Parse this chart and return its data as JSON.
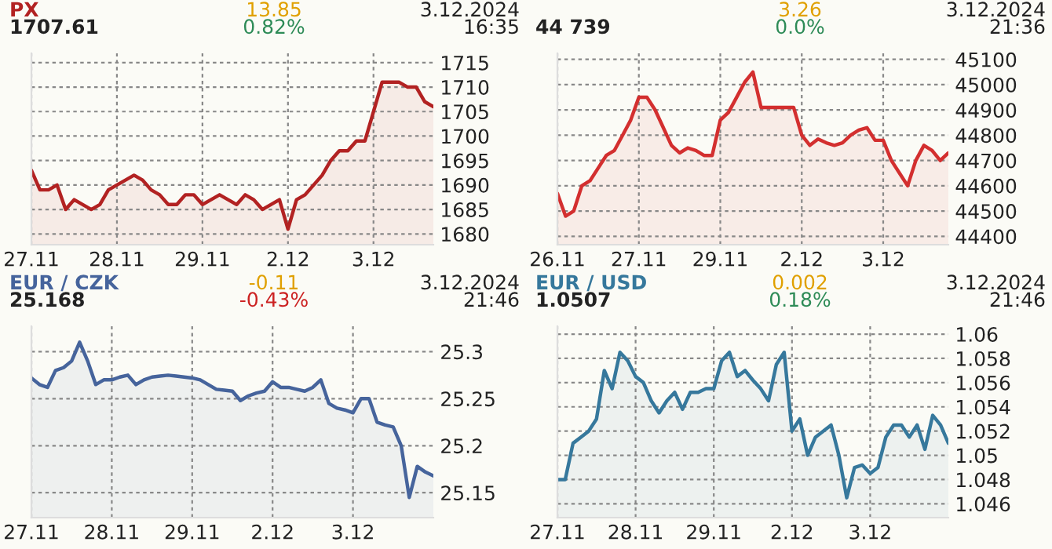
{
  "chart_data": [
    {
      "type": "area",
      "title": "PX",
      "subtitle": "1707.61",
      "annotations": [
        "13.85",
        "0.82%",
        "3.12.2024",
        "16:35"
      ],
      "grid": true,
      "categories": [
        "27.11",
        null,
        null,
        null,
        null,
        null,
        null,
        null,
        null,
        null,
        "28.11",
        null,
        null,
        null,
        null,
        null,
        null,
        null,
        null,
        null,
        "29.11",
        null,
        null,
        null,
        null,
        null,
        null,
        null,
        null,
        null,
        "2.12",
        null,
        null,
        null,
        null,
        null,
        null,
        null,
        null,
        null,
        "3.12",
        null,
        null,
        null,
        null,
        null,
        null,
        null
      ],
      "ylim": [
        1677.8,
        1716.9
      ],
      "yticks": [
        1680,
        1685,
        1690,
        1695,
        1700,
        1705,
        1710,
        1715
      ],
      "series": [
        {
          "color": "#b22222",
          "values": [
            1693,
            1689,
            1689,
            1690,
            1685,
            1687,
            1686,
            1685,
            1686,
            1689,
            1690,
            1691,
            1692,
            1691,
            1689,
            1688,
            1686,
            1686,
            1688,
            1688,
            1686,
            1687,
            1688,
            1687,
            1686,
            1688,
            1687,
            1685,
            1686,
            1687,
            1681,
            1687,
            1688,
            1690,
            1692,
            1695,
            1697,
            1697,
            1699,
            1699,
            1705,
            1711,
            1711,
            1711,
            1710,
            1710,
            1707,
            1706
          ]
        }
      ]
    },
    {
      "type": "area",
      "title": null,
      "subtitle": "44 739",
      "annotations": [
        "3.26",
        "0.0%",
        "3.12.2024",
        "21:36"
      ],
      "grid": true,
      "categories": [
        "26.11",
        null,
        null,
        null,
        null,
        null,
        null,
        null,
        null,
        null,
        "27.11",
        null,
        null,
        null,
        null,
        null,
        null,
        null,
        null,
        null,
        "29.11",
        null,
        null,
        null,
        null,
        null,
        null,
        null,
        null,
        null,
        "2.12",
        null,
        null,
        null,
        null,
        null,
        null,
        null,
        null,
        null,
        "3.12",
        null,
        null,
        null,
        null,
        null,
        null,
        null,
        null
      ],
      "ylim": [
        44367,
        45124
      ],
      "yticks": [
        44400,
        44500,
        44600,
        44700,
        44800,
        44900,
        45000,
        45100
      ],
      "series": [
        {
          "color": "#d32f2f",
          "values": [
            44570,
            44480,
            44500,
            44600,
            44620,
            44670,
            44720,
            44740,
            44800,
            44860,
            44950,
            44950,
            44900,
            44830,
            44760,
            44730,
            44750,
            44740,
            44720,
            44720,
            44860,
            44890,
            44950,
            45010,
            45050,
            44910,
            44910,
            44910,
            44910,
            44910,
            44800,
            44760,
            44785,
            44770,
            44760,
            44770,
            44800,
            44820,
            44830,
            44780,
            44780,
            44700,
            44650,
            44600,
            44700,
            44760,
            44740,
            44700,
            44730
          ]
        }
      ]
    },
    {
      "type": "area",
      "title": "EUR / CZK",
      "subtitle": "25.168",
      "annotations": [
        "-0.11",
        "-0.43%",
        "3.12.2024",
        "21:46"
      ],
      "grid": true,
      "categories": [
        "27.11",
        null,
        null,
        null,
        null,
        null,
        null,
        null,
        null,
        null,
        "28.11",
        null,
        null,
        null,
        null,
        null,
        null,
        null,
        null,
        null,
        "29.11",
        null,
        null,
        null,
        null,
        null,
        null,
        null,
        null,
        null,
        "2.12",
        null,
        null,
        null,
        null,
        null,
        null,
        null,
        null,
        null,
        "3.12",
        null,
        null,
        null,
        null,
        null,
        null,
        null,
        null,
        null,
        null
      ],
      "ylim": [
        25.1235,
        25.327
      ],
      "yticks": [
        25.15,
        25.2,
        25.25,
        25.3
      ],
      "series": [
        {
          "color": "#46649c",
          "values": [
            25.272,
            25.265,
            25.262,
            25.28,
            25.283,
            25.29,
            25.31,
            25.29,
            25.265,
            25.27,
            25.27,
            25.273,
            25.275,
            25.265,
            25.27,
            25.273,
            25.274,
            25.275,
            25.274,
            25.273,
            25.272,
            25.27,
            25.265,
            25.26,
            25.259,
            25.258,
            25.248,
            25.253,
            25.256,
            25.258,
            25.268,
            25.262,
            25.262,
            25.26,
            25.258,
            25.262,
            25.27,
            25.245,
            25.24,
            25.238,
            25.235,
            25.25,
            25.25,
            25.225,
            25.222,
            25.22,
            25.2,
            25.145,
            25.178,
            25.172,
            25.168
          ]
        }
      ]
    },
    {
      "type": "area",
      "title": "EUR / USD",
      "subtitle": "1.0507",
      "annotations": [
        "0.002",
        "0.18%",
        "3.12.2024",
        "21:46"
      ],
      "grid": true,
      "categories": [
        "27.11",
        null,
        null,
        null,
        null,
        null,
        null,
        null,
        null,
        null,
        "28.11",
        null,
        null,
        null,
        null,
        null,
        null,
        null,
        null,
        null,
        "29.11",
        null,
        null,
        null,
        null,
        null,
        null,
        null,
        null,
        null,
        "2.12",
        null,
        null,
        null,
        null,
        null,
        null,
        null,
        null,
        null,
        "3.12",
        null,
        null,
        null,
        null,
        null,
        null,
        null,
        null,
        null,
        null
      ],
      "ylim": [
        1.04486,
        1.06065
      ],
      "yticks": [
        1.046,
        1.048,
        1.05,
        1.052,
        1.054,
        1.056,
        1.058,
        1.06
      ],
      "series": [
        {
          "color": "#36789c",
          "values": [
            1.048,
            1.048,
            1.051,
            1.0515,
            1.052,
            1.053,
            1.057,
            1.0555,
            1.0585,
            1.0578,
            1.0565,
            1.056,
            1.0545,
            1.0535,
            1.0545,
            1.0552,
            1.0538,
            1.0552,
            1.0552,
            1.0555,
            1.0555,
            1.0578,
            1.0585,
            1.0565,
            1.057,
            1.0562,
            1.0555,
            1.0545,
            1.0575,
            1.0585,
            1.052,
            1.053,
            1.05,
            1.0515,
            1.052,
            1.0525,
            1.05,
            1.0465,
            1.049,
            1.0492,
            1.0485,
            1.049,
            1.0515,
            1.0525,
            1.0525,
            1.0515,
            1.0525,
            1.0505,
            1.0533,
            1.0525,
            1.051
          ]
        }
      ]
    }
  ]
}
